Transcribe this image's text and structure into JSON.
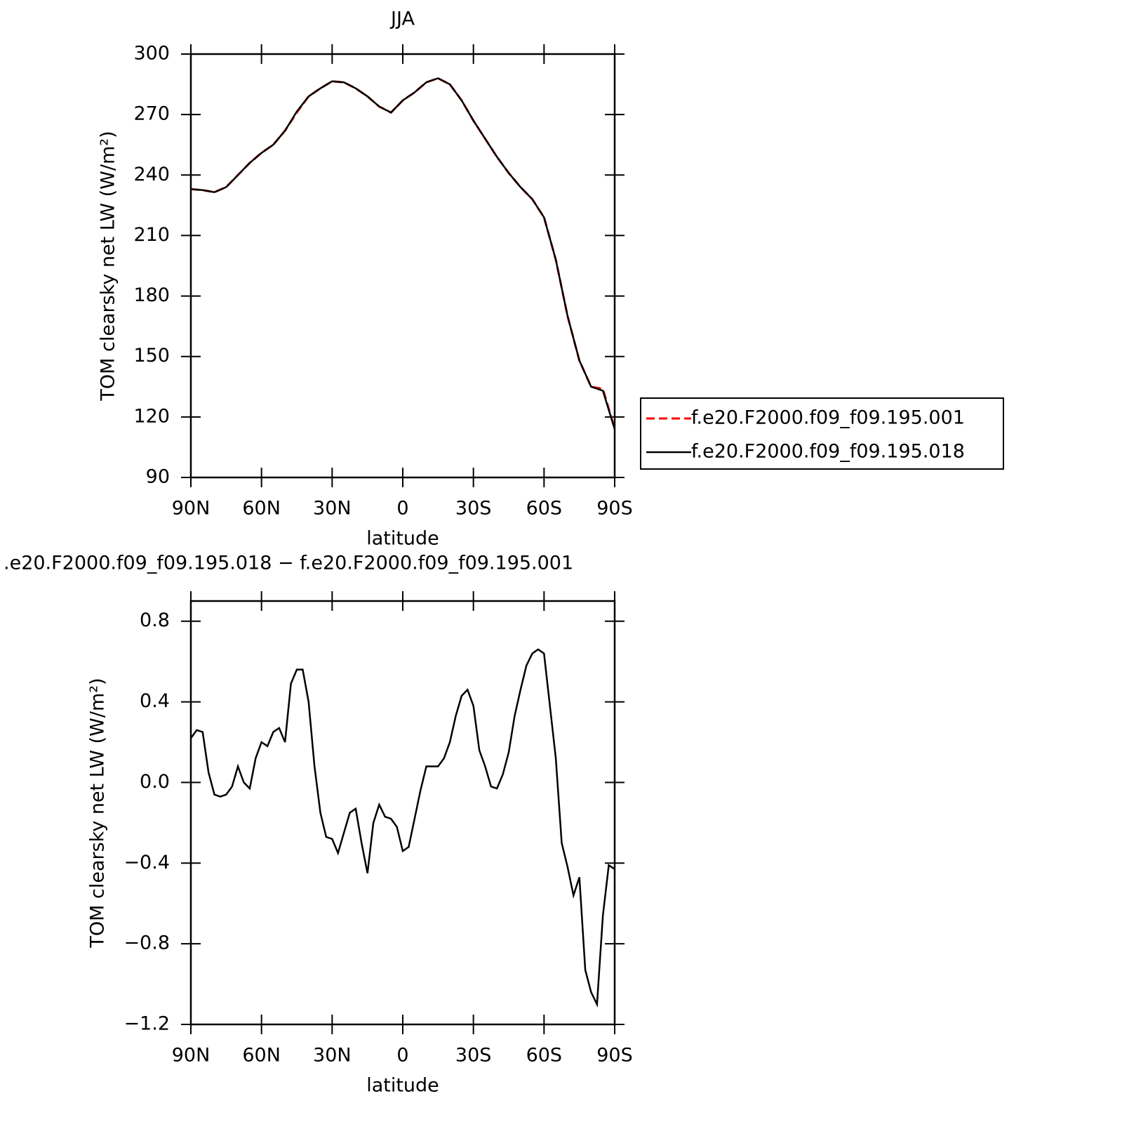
{
  "chart_data": [
    {
      "type": "line",
      "title": "JJA",
      "xlabel": "latitude",
      "ylabel": "TOM clearsky net LW (W/m²)",
      "x": [
        90,
        85,
        80,
        75,
        70,
        65,
        60,
        55,
        50,
        45,
        40,
        35,
        30,
        25,
        20,
        15,
        10,
        5,
        0,
        -5,
        -10,
        -15,
        -20,
        -25,
        -30,
        -35,
        -40,
        -45,
        -50,
        -55,
        -60,
        -65,
        -70,
        -75,
        -80,
        -85,
        -90
      ],
      "series": [
        {
          "name": "f.e20.F2000.f09_f09.195.001",
          "color": "#ff0000",
          "dash": true,
          "values": [
            233,
            232.5,
            231.5,
            234,
            240,
            246,
            251,
            255,
            262,
            271,
            279,
            283,
            286.5,
            286,
            283,
            279,
            274,
            271,
            277,
            281,
            286,
            288,
            285,
            277,
            267,
            258,
            249,
            241,
            234,
            228,
            219,
            198,
            170,
            148,
            135,
            134,
            114
          ]
        },
        {
          "name": "f.e20.F2000.f09_f09.195.018",
          "color": "#000000",
          "dash": false,
          "values": [
            233,
            232.5,
            231.5,
            234,
            240,
            246,
            251,
            255,
            262,
            271.5,
            279,
            283,
            286.5,
            286,
            283,
            279,
            274,
            271,
            277,
            281,
            286,
            288,
            285,
            277,
            267,
            258,
            249,
            241,
            234,
            228,
            219,
            198,
            170,
            148,
            135,
            133,
            114
          ]
        }
      ],
      "xlim": [
        90,
        -90
      ],
      "xticks": [
        {
          "value": 90,
          "label": "90N"
        },
        {
          "value": 60,
          "label": "60N"
        },
        {
          "value": 30,
          "label": "30N"
        },
        0,
        {
          "value": -30,
          "label": "30S"
        },
        {
          "value": -60,
          "label": "60S"
        },
        {
          "value": -90,
          "label": "90S"
        }
      ],
      "ylim": [
        90,
        300
      ],
      "yticks": [
        90,
        120,
        150,
        180,
        210,
        240,
        270,
        300
      ],
      "legend": "right"
    },
    {
      "type": "line",
      "title": ".e20.F2000.f09_f09.195.018 − f.e20.F2000.f09_f09.195.001",
      "xlabel": "latitude",
      "ylabel": "TOM clearsky net LW (W/m²)",
      "x": [
        90,
        87.5,
        85,
        82.5,
        80,
        77.5,
        75,
        72.5,
        70,
        67.5,
        65,
        62.5,
        60,
        57.5,
        55,
        52.5,
        50,
        47.5,
        45,
        42.5,
        40,
        37.5,
        35,
        32.5,
        30,
        27.5,
        25,
        22.5,
        20,
        17.5,
        15,
        12.5,
        10,
        7.5,
        5,
        2.5,
        0,
        -2.5,
        -5,
        -7.5,
        -10,
        -12.5,
        -15,
        -17.5,
        -20,
        -22.5,
        -25,
        -27.5,
        -30,
        -32.5,
        -35,
        -37.5,
        -40,
        -42.5,
        -45,
        -47.5,
        -50,
        -52.5,
        -55,
        -57.5,
        -60,
        -62.5,
        -65,
        -67.5,
        -70,
        -72.5,
        -75,
        -77.5,
        -80,
        -82.5,
        -85,
        -87.5,
        -90
      ],
      "series": [
        {
          "name": null,
          "color": "#000000",
          "dash": false,
          "values": [
            0.22,
            0.26,
            0.25,
            0.05,
            -0.06,
            -0.07,
            -0.06,
            -0.02,
            0.08,
            0.0,
            -0.03,
            0.12,
            0.2,
            0.18,
            0.25,
            0.27,
            0.2,
            0.49,
            0.56,
            0.56,
            0.4,
            0.08,
            -0.15,
            -0.27,
            -0.28,
            -0.35,
            -0.25,
            -0.15,
            -0.13,
            -0.3,
            -0.45,
            -0.2,
            -0.11,
            -0.17,
            -0.18,
            -0.22,
            -0.34,
            -0.32,
            -0.18,
            -0.04,
            0.08,
            0.08,
            0.08,
            0.12,
            0.2,
            0.33,
            0.43,
            0.46,
            0.38,
            0.16,
            0.08,
            -0.02,
            -0.03,
            0.04,
            0.15,
            0.33,
            0.46,
            0.58,
            0.64,
            0.66,
            0.64,
            0.38,
            0.12,
            -0.3,
            -0.42,
            -0.56,
            -0.47,
            -0.93,
            -1.04,
            -1.1,
            -0.66,
            -0.41,
            -0.43
          ]
        }
      ],
      "xlim": [
        90,
        -90
      ],
      "xticks": [
        {
          "value": 90,
          "label": "90N"
        },
        {
          "value": 60,
          "label": "60N"
        },
        {
          "value": 30,
          "label": "30N"
        },
        0,
        {
          "value": -30,
          "label": "30S"
        },
        {
          "value": -60,
          "label": "60S"
        },
        {
          "value": -90,
          "label": "90S"
        }
      ],
      "ylim": [
        -1.2,
        0.9
      ],
      "yticks": [
        {
          "value": -1.2,
          "label": "−1.2"
        },
        {
          "value": -0.8,
          "label": "−0.8"
        },
        {
          "value": -0.4,
          "label": "−0.4"
        },
        {
          "value": 0,
          "label": "0.0"
        },
        0.4,
        0.8
      ]
    }
  ]
}
